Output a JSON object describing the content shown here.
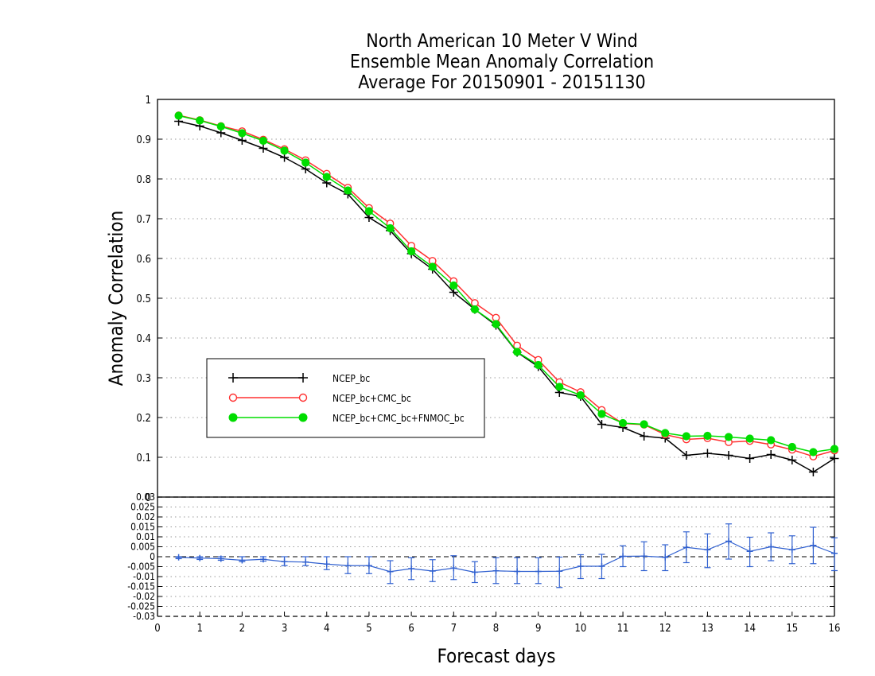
{
  "chart_data": [
    {
      "type": "line",
      "title": [
        "North American 10 Meter V Wind",
        "Ensemble Mean Anomaly Correlation",
        "Average For 20150901 - 20151130"
      ],
      "xlabel": "Forecast days",
      "ylabel": "Anomaly Correlation",
      "xlim": [
        0,
        16
      ],
      "ylim": [
        0,
        1
      ],
      "x_ticks": [
        "0",
        "1",
        "2",
        "3",
        "4",
        "5",
        "6",
        "7",
        "8",
        "9",
        "10",
        "11",
        "12",
        "13",
        "14",
        "15",
        "16"
      ],
      "y_ticks": [
        "0.1",
        "0.2",
        "0.3",
        "0.4",
        "0.5",
        "0.6",
        "0.7",
        "0.8",
        "0.9",
        "1"
      ],
      "grid": "horizontal dotted",
      "legend_position": "left-middle",
      "x": [
        0.5,
        1,
        1.5,
        2,
        2.5,
        3,
        3.5,
        4,
        4.5,
        5,
        5.5,
        6,
        6.5,
        7,
        7.5,
        8,
        8.5,
        9,
        9.5,
        10,
        10.5,
        11,
        11.5,
        12,
        12.5,
        13,
        13.5,
        14,
        14.5,
        15,
        15.5,
        16
      ],
      "series": [
        {
          "name": "NCEP_bc",
          "color": "#000000",
          "marker": "plus",
          "values": [
            0.945,
            0.933,
            0.916,
            0.897,
            0.877,
            0.854,
            0.825,
            0.79,
            0.762,
            0.703,
            0.67,
            0.612,
            0.573,
            0.515,
            0.472,
            0.432,
            0.364,
            0.328,
            0.263,
            0.253,
            0.183,
            0.175,
            0.153,
            0.148,
            0.105,
            0.11,
            0.105,
            0.097,
            0.107,
            0.093,
            0.063,
            0.097
          ]
        },
        {
          "name": "NCEP_bc+CMC_bc",
          "color": "#ff3030",
          "marker": "open-circle",
          "values": [
            0.96,
            0.948,
            0.933,
            0.92,
            0.899,
            0.875,
            0.847,
            0.813,
            0.778,
            0.727,
            0.688,
            0.632,
            0.594,
            0.543,
            0.488,
            0.451,
            0.381,
            0.345,
            0.289,
            0.264,
            0.219,
            0.185,
            0.182,
            0.157,
            0.145,
            0.148,
            0.138,
            0.141,
            0.132,
            0.119,
            0.102,
            0.117
          ]
        },
        {
          "name": "NCEP_bc+CMC_bc+FNMOC_bc",
          "color": "#00dd00",
          "marker": "filled-circle",
          "values": [
            0.959,
            0.947,
            0.932,
            0.915,
            0.896,
            0.871,
            0.841,
            0.805,
            0.771,
            0.719,
            0.676,
            0.618,
            0.579,
            0.532,
            0.472,
            0.435,
            0.365,
            0.332,
            0.277,
            0.256,
            0.209,
            0.186,
            0.183,
            0.161,
            0.153,
            0.154,
            0.151,
            0.147,
            0.143,
            0.126,
            0.113,
            0.121
          ]
        }
      ]
    },
    {
      "type": "line",
      "title": "",
      "xlabel": "Forecast days",
      "ylabel": "",
      "xlim": [
        0,
        16
      ],
      "ylim": [
        -0.03,
        0.03
      ],
      "y_ticks": [
        "-0.03",
        "-0.025",
        "-0.02",
        "-0.015",
        "-0.01",
        "-0.005",
        "0",
        "0.005",
        "0.01",
        "0.015",
        "0.02",
        "0.025",
        "0.03"
      ],
      "top_label": "0",
      "grid": "horizontal dotted",
      "x": [
        0.5,
        1,
        1.5,
        2,
        2.5,
        3,
        3.5,
        4,
        4.5,
        5,
        5.5,
        6,
        6.5,
        7,
        7.5,
        8,
        8.5,
        9,
        9.5,
        10,
        10.5,
        11,
        11.5,
        12,
        12.5,
        13,
        13.5,
        14,
        14.5,
        15,
        15.5,
        16
      ],
      "series": [
        {
          "name": "",
          "color": "#3060d0",
          "marker": "plus",
          "values": [
            -0.0003,
            -0.0007,
            -0.001,
            -0.0018,
            -0.0013,
            -0.0025,
            -0.0027,
            -0.0037,
            -0.0045,
            -0.0045,
            -0.0075,
            -0.006,
            -0.0072,
            -0.0057,
            -0.0078,
            -0.0071,
            -0.0074,
            -0.0074,
            -0.0073,
            -0.0048,
            -0.0048,
            0.0002,
            0.0003,
            -0.0003,
            0.0047,
            0.0035,
            0.0078,
            0.0027,
            0.005,
            0.0035,
            0.0057,
            0.0017
          ],
          "error_low": [
            -0.001,
            -0.0014,
            -0.0018,
            -0.0025,
            -0.0022,
            -0.0045,
            -0.0045,
            -0.0065,
            -0.0085,
            -0.0085,
            -0.0135,
            -0.0115,
            -0.0125,
            -0.0115,
            -0.013,
            -0.0135,
            -0.0135,
            -0.0135,
            -0.0155,
            -0.011,
            -0.011,
            -0.005,
            -0.007,
            -0.007,
            -0.003,
            -0.0055,
            -0.0012,
            -0.005,
            -0.002,
            -0.0035,
            -0.0035,
            -0.007
          ],
          "error_high": [
            0,
            0,
            0,
            0,
            0,
            0,
            0,
            0,
            0,
            0,
            -0.002,
            -0.0005,
            -0.0015,
            0.0005,
            -0.0025,
            -0.0005,
            -0.0005,
            -0.0005,
            -0.0002,
            0.001,
            0.0012,
            0.0055,
            0.0075,
            0.006,
            0.0125,
            0.0115,
            0.0165,
            0.0098,
            0.012,
            0.0105,
            0.0148,
            0.0095
          ]
        }
      ]
    }
  ]
}
